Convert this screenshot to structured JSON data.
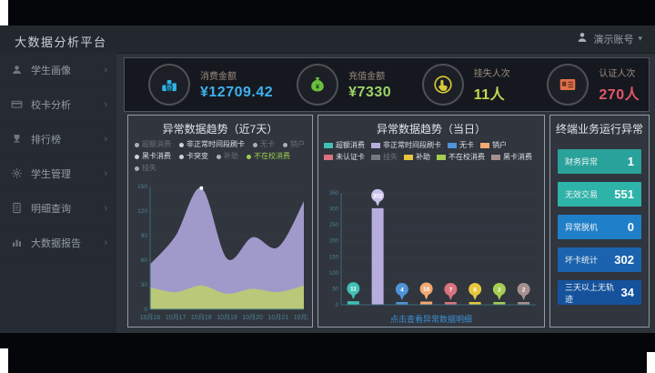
{
  "header": {
    "title": "大数据分析平台",
    "user_name": "演示账号",
    "caret": "▾"
  },
  "sidebar": {
    "items": [
      {
        "label": "学生画像",
        "icon": "person-icon"
      },
      {
        "label": "校卡分析",
        "icon": "card-icon"
      },
      {
        "label": "排行榜",
        "icon": "trophy-icon"
      },
      {
        "label": "学生管理",
        "icon": "gear-icon"
      },
      {
        "label": "明细查询",
        "icon": "document-icon"
      },
      {
        "label": "大数据报告",
        "icon": "report-icon"
      }
    ]
  },
  "kpis": [
    {
      "label": "消费金额",
      "value": "¥12709.42",
      "accent": "#2fb5e8",
      "value_color": "#3eb1ef",
      "icon": "coins-icon"
    },
    {
      "label": "充值金额",
      "value": "¥7330",
      "accent": "#6abf3f",
      "value_color": "#9fd468",
      "icon": "moneybag-icon"
    },
    {
      "label": "挂失人次",
      "value": "11人",
      "accent": "#d8c937",
      "value_color": "#c3d94e",
      "icon": "hand-click-icon"
    },
    {
      "label": "认证人次",
      "value": "270人",
      "accent": "#e2704a",
      "value_color": "#e4566a",
      "icon": "idcard-icon"
    }
  ],
  "weekly_panel": {
    "title": "异常数据趋势（近7天）",
    "legend": [
      {
        "label": "超额消费",
        "state": "dim"
      },
      {
        "label": "非正常时间段刷卡",
        "state": "active"
      },
      {
        "label": "无卡",
        "state": "dim"
      },
      {
        "label": "销户",
        "state": "dim"
      },
      {
        "label": "黑卡消费",
        "state": "active"
      },
      {
        "label": "卡突变",
        "state": "active"
      },
      {
        "label": "补助",
        "state": "dim"
      },
      {
        "label": "不在校消费",
        "state": "green"
      },
      {
        "label": "挂失",
        "state": "dim"
      }
    ],
    "chart_data": {
      "type": "area",
      "title": "异常数据趋势（近7天）",
      "x": [
        "10月16",
        "10月17",
        "10月18",
        "10月19",
        "10月20",
        "10月21",
        "10月22"
      ],
      "series": [
        {
          "name": "非正常时间段刷卡",
          "color": "#a7a0d2",
          "values": [
            55,
            90,
            148,
            62,
            88,
            76,
            132
          ]
        },
        {
          "name": "不在校消费",
          "color": "#bcca74",
          "values": [
            27,
            21,
            29,
            19,
            25,
            21,
            29
          ]
        }
      ],
      "ylim": [
        0,
        150
      ],
      "yticks": [
        0,
        30,
        60,
        90,
        120,
        150
      ],
      "grid": true,
      "legend_position": "top"
    }
  },
  "daily_panel": {
    "title": "异常数据趋势（当日）",
    "footer_link": "点击查看异常数据明细",
    "legend": [
      {
        "label": "超额消费",
        "color": "#41c0b5",
        "dim": false
      },
      {
        "label": "非正常时间段刷卡",
        "color": "#b7aedd",
        "dim": false
      },
      {
        "label": "无卡",
        "color": "#4f93d8",
        "dim": false
      },
      {
        "label": "销户",
        "color": "#f2aa72",
        "dim": false
      },
      {
        "label": "未认证卡",
        "color": "#d9737f",
        "dim": false
      },
      {
        "label": "挂失",
        "color": "#74797f",
        "dim": true
      },
      {
        "label": "补助",
        "color": "#e6c73c",
        "dim": false
      },
      {
        "label": "不在校消费",
        "color": "#a6cc52",
        "dim": false
      },
      {
        "label": "黑卡消费",
        "color": "#a78f8f",
        "dim": false
      }
    ],
    "chart_data": {
      "type": "bar",
      "title": "异常数据趋势（当日）",
      "categories": [
        "超额消费",
        "非正常时间段刷卡",
        "无卡",
        "销户",
        "未认证卡",
        "补助",
        "不在校消费",
        "黑卡消费"
      ],
      "values": [
        11,
        302,
        4,
        10,
        7,
        6,
        2,
        2
      ],
      "colors": [
        "#41c0b5",
        "#b7aedd",
        "#4f93d8",
        "#f2aa72",
        "#d9737f",
        "#e6c73c",
        "#a6cc52",
        "#a78f8f"
      ],
      "balloon_colors": [
        "#41c0b5",
        "#c9c2ea",
        "#4f93d8",
        "#f2aa72",
        "#d9737f",
        "#e6c73c",
        "#a6cc52",
        "#a78f8f"
      ],
      "ylim": [
        0,
        350
      ],
      "yticks": [
        0,
        50,
        100,
        150,
        200,
        250,
        300,
        350
      ],
      "grid": true
    }
  },
  "terminal_panel": {
    "title": "终端业务运行异常",
    "stats": [
      {
        "label": "财务异常",
        "value": "1",
        "bg": "#28a29a"
      },
      {
        "label": "无效交易",
        "value": "551",
        "bg": "#2eb3a9"
      },
      {
        "label": "异常脱机",
        "value": "0",
        "bg": "#1f7fc9"
      },
      {
        "label": "坏卡统计",
        "value": "302",
        "bg": "#1b63ae"
      },
      {
        "label": "三天以上无轨迹",
        "value": "34",
        "bg": "#16529c"
      }
    ]
  },
  "chart_colors": {
    "axis": "#3c6b7b",
    "tick_text": "#4d8494",
    "grid": "#46525c"
  }
}
